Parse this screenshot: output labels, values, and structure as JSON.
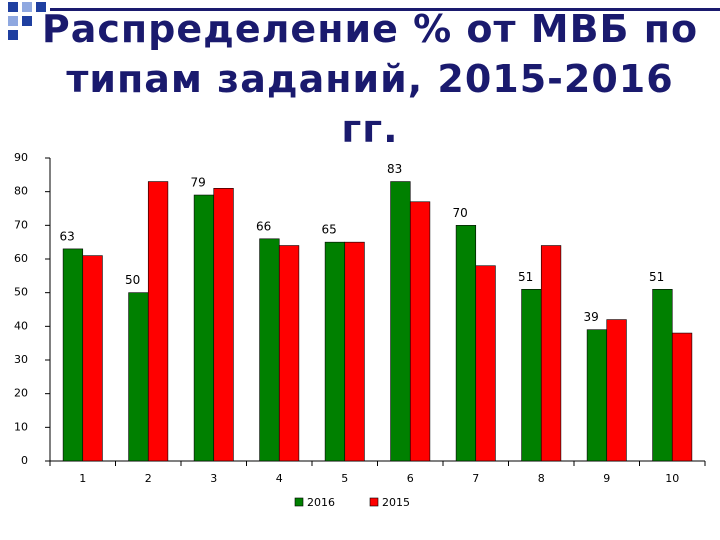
{
  "chart_data": {
    "type": "bar",
    "title": "Распределение % от МВБ по типам заданий, 2015-2016 гг.",
    "categories": [
      "1",
      "2",
      "3",
      "4",
      "5",
      "6",
      "7",
      "8",
      "9",
      "10"
    ],
    "series": [
      {
        "name": "2016",
        "color": "#008000",
        "data_labels": true,
        "values": [
          63,
          50,
          79,
          66,
          65,
          83,
          70,
          51,
          39,
          51
        ]
      },
      {
        "name": "2015",
        "color": "#ff0000",
        "data_labels": false,
        "values": [
          61,
          83,
          81,
          64,
          65,
          77,
          58,
          64,
          42,
          38
        ]
      }
    ],
    "ylim": [
      0,
      90
    ],
    "yticks": [
      0,
      10,
      20,
      30,
      40,
      50,
      60,
      70,
      80,
      90
    ],
    "grid": false,
    "legend": "bottom"
  }
}
